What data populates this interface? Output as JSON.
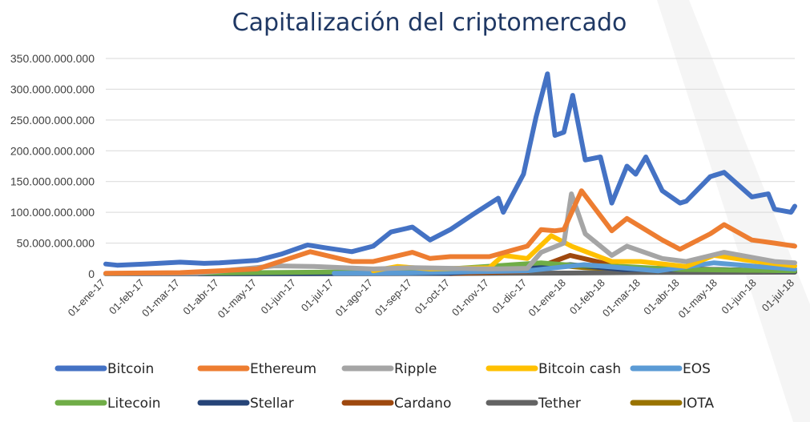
{
  "chart_data": {
    "type": "line",
    "title": "Capitalización del criptomercado",
    "xlabel": "",
    "ylabel": "",
    "ylim": [
      0,
      350000000000
    ],
    "ytick_values": [
      0,
      50000000000,
      100000000000,
      150000000000,
      200000000000,
      250000000000,
      300000000000,
      350000000000
    ],
    "ytick_labels": [
      "0",
      "50.000.000.000",
      "100.000.000.000",
      "150.000.000.000",
      "200.000.000.000",
      "250.000.000.000",
      "300.000.000.000",
      "350.000.000.000"
    ],
    "xlim": [
      "2017-01-01",
      "2018-07-01"
    ],
    "xtick_dates": [
      "2017-01-01",
      "2017-02-01",
      "2017-03-01",
      "2017-04-01",
      "2017-05-01",
      "2017-06-01",
      "2017-07-01",
      "2017-08-01",
      "2017-09-01",
      "2017-10-01",
      "2017-11-01",
      "2017-12-01",
      "2018-01-01",
      "2018-02-01",
      "2018-03-01",
      "2018-04-01",
      "2018-05-01",
      "2018-06-01",
      "2018-07-01"
    ],
    "xtick_labels": [
      "01-ene-17",
      "01-feb-17",
      "01-mar-17",
      "01-abr-17",
      "01-may-17",
      "01-jun-17",
      "01-jul-17",
      "01-ago-17",
      "01-sep-17",
      "01-oct-17",
      "01-nov-17",
      "01-dic-17",
      "01-ene-18",
      "01-feb-18",
      "01-mar-18",
      "01-abr-18",
      "01-may-18",
      "01-jun-18",
      "01-jul-18"
    ],
    "grid": true,
    "legend_position": "bottom",
    "series": [
      {
        "name": "Bitcoin",
        "color": "#4472c4",
        "points": [
          [
            "2017-01-01",
            16000000000.0
          ],
          [
            "2017-01-10",
            14000000000.0
          ],
          [
            "2017-02-01",
            16000000000.0
          ],
          [
            "2017-03-01",
            19000000000.0
          ],
          [
            "2017-03-20",
            17000000000.0
          ],
          [
            "2017-04-01",
            18000000000.0
          ],
          [
            "2017-05-01",
            22000000000.0
          ],
          [
            "2017-05-20",
            32000000000.0
          ],
          [
            "2017-06-10",
            47000000000.0
          ],
          [
            "2017-06-25",
            42000000000.0
          ],
          [
            "2017-07-15",
            36000000000.0
          ],
          [
            "2017-08-01",
            45000000000.0
          ],
          [
            "2017-08-15",
            68000000000.0
          ],
          [
            "2017-09-01",
            76000000000.0
          ],
          [
            "2017-09-15",
            55000000000.0
          ],
          [
            "2017-10-01",
            72000000000.0
          ],
          [
            "2017-10-20",
            98000000000.0
          ],
          [
            "2017-11-08",
            123000000000.0
          ],
          [
            "2017-11-12",
            100000000000.0
          ],
          [
            "2017-11-28",
            162000000000.0
          ],
          [
            "2017-12-08",
            255000000000.0
          ],
          [
            "2017-12-17",
            325000000000.0
          ],
          [
            "2017-12-23",
            225000000000.0
          ],
          [
            "2017-12-30",
            230000000000.0
          ],
          [
            "2018-01-06",
            290000000000.0
          ],
          [
            "2018-01-16",
            185000000000.0
          ],
          [
            "2018-01-28",
            190000000000.0
          ],
          [
            "2018-02-06",
            115000000000.0
          ],
          [
            "2018-02-18",
            175000000000.0
          ],
          [
            "2018-02-25",
            162000000000.0
          ],
          [
            "2018-03-05",
            190000000000.0
          ],
          [
            "2018-03-18",
            135000000000.0
          ],
          [
            "2018-04-01",
            115000000000.0
          ],
          [
            "2018-04-06",
            118000000000.0
          ],
          [
            "2018-04-25",
            158000000000.0
          ],
          [
            "2018-05-06",
            165000000000.0
          ],
          [
            "2018-05-28",
            125000000000.0
          ],
          [
            "2018-06-10",
            130000000000.0
          ],
          [
            "2018-06-15",
            105000000000.0
          ],
          [
            "2018-06-28",
            100000000000.0
          ],
          [
            "2018-07-01",
            110000000000.0
          ]
        ]
      },
      {
        "name": "Ethereum",
        "color": "#ed7d31",
        "points": [
          [
            "2017-01-01",
            1000000000.0
          ],
          [
            "2017-03-01",
            2000000000.0
          ],
          [
            "2017-05-01",
            8000000000.0
          ],
          [
            "2017-06-12",
            36000000000.0
          ],
          [
            "2017-07-15",
            20000000000.0
          ],
          [
            "2017-08-01",
            20000000000.0
          ],
          [
            "2017-09-01",
            35000000000.0
          ],
          [
            "2017-09-15",
            25000000000.0
          ],
          [
            "2017-10-01",
            28000000000.0
          ],
          [
            "2017-11-01",
            28000000000.0
          ],
          [
            "2017-12-01",
            45000000000.0
          ],
          [
            "2017-12-12",
            72000000000.0
          ],
          [
            "2017-12-23",
            70000000000.0
          ],
          [
            "2017-12-30",
            72000000000.0
          ],
          [
            "2018-01-13",
            135000000000.0
          ],
          [
            "2018-02-06",
            70000000000.0
          ],
          [
            "2018-02-18",
            90000000000.0
          ],
          [
            "2018-03-18",
            55000000000.0
          ],
          [
            "2018-04-01",
            40000000000.0
          ],
          [
            "2018-04-25",
            65000000000.0
          ],
          [
            "2018-05-06",
            80000000000.0
          ],
          [
            "2018-05-28",
            55000000000.0
          ],
          [
            "2018-06-15",
            50000000000.0
          ],
          [
            "2018-07-01",
            45000000000.0
          ]
        ]
      },
      {
        "name": "Ripple",
        "color": "#a5a5a5",
        "points": [
          [
            "2017-01-01",
            300000000.0
          ],
          [
            "2017-03-15",
            1000000000.0
          ],
          [
            "2017-05-15",
            13000000000.0
          ],
          [
            "2017-06-15",
            12000000000.0
          ],
          [
            "2017-08-01",
            8000000000.0
          ],
          [
            "2017-09-01",
            10000000000.0
          ],
          [
            "2017-11-01",
            8000000000.0
          ],
          [
            "2017-12-01",
            9000000000.0
          ],
          [
            "2017-12-12",
            35000000000.0
          ],
          [
            "2017-12-30",
            50000000000.0
          ],
          [
            "2018-01-05",
            130000000000.0
          ],
          [
            "2018-01-16",
            65000000000.0
          ],
          [
            "2018-02-06",
            30000000000.0
          ],
          [
            "2018-02-18",
            45000000000.0
          ],
          [
            "2018-03-18",
            25000000000.0
          ],
          [
            "2018-04-06",
            20000000000.0
          ],
          [
            "2018-05-06",
            35000000000.0
          ],
          [
            "2018-06-15",
            20000000000.0
          ],
          [
            "2018-07-01",
            18000000000.0
          ]
        ]
      },
      {
        "name": "Bitcoin cash",
        "color": "#ffc000",
        "points": [
          [
            "2017-08-01",
            5000000000.0
          ],
          [
            "2017-08-20",
            12000000000.0
          ],
          [
            "2017-09-15",
            8000000000.0
          ],
          [
            "2017-11-01",
            10000000000.0
          ],
          [
            "2017-11-12",
            30000000000.0
          ],
          [
            "2017-12-01",
            25000000000.0
          ],
          [
            "2017-12-20",
            62000000000.0
          ],
          [
            "2018-01-05",
            45000000000.0
          ],
          [
            "2018-02-06",
            20000000000.0
          ],
          [
            "2018-03-01",
            20000000000.0
          ],
          [
            "2018-04-06",
            12000000000.0
          ],
          [
            "2018-04-28",
            30000000000.0
          ],
          [
            "2018-06-01",
            20000000000.0
          ],
          [
            "2018-07-01",
            13000000000.0
          ]
        ]
      },
      {
        "name": "EOS",
        "color": "#5b9bd5",
        "points": [
          [
            "2017-07-01",
            1000000000.0
          ],
          [
            "2017-09-01",
            1500000000.0
          ],
          [
            "2017-12-01",
            5000000000.0
          ],
          [
            "2018-01-15",
            15000000000.0
          ],
          [
            "2018-03-15",
            5000000000.0
          ],
          [
            "2018-04-28",
            18000000000.0
          ],
          [
            "2018-06-01",
            12000000000.0
          ],
          [
            "2018-07-01",
            8000000000.0
          ]
        ]
      },
      {
        "name": "Litecoin",
        "color": "#70ad47",
        "points": [
          [
            "2017-01-01",
            300000000.0
          ],
          [
            "2017-05-01",
            2000000000.0
          ],
          [
            "2017-09-01",
            4000000000.0
          ],
          [
            "2017-12-12",
            18000000000.0
          ],
          [
            "2018-01-05",
            14000000000.0
          ],
          [
            "2018-02-15",
            12000000000.0
          ],
          [
            "2018-04-01",
            7000000000.0
          ],
          [
            "2018-07-01",
            5000000000.0
          ]
        ]
      },
      {
        "name": "Stellar",
        "color": "#264478",
        "points": [
          [
            "2017-01-01",
            100000000.0
          ],
          [
            "2017-10-01",
            1000000000.0
          ],
          [
            "2018-01-04",
            15000000000.0
          ],
          [
            "2018-02-15",
            7000000000.0
          ],
          [
            "2018-05-01",
            7000000000.0
          ],
          [
            "2018-07-01",
            4000000000.0
          ]
        ]
      },
      {
        "name": "Cardano",
        "color": "#9e480e",
        "points": [
          [
            "2017-10-01",
            500000000.0
          ],
          [
            "2017-12-01",
            4000000000.0
          ],
          [
            "2018-01-04",
            30000000000.0
          ],
          [
            "2018-02-15",
            10000000000.0
          ],
          [
            "2018-05-01",
            7000000000.0
          ],
          [
            "2018-07-01",
            4000000000.0
          ]
        ]
      },
      {
        "name": "Tether",
        "color": "#636363",
        "points": [
          [
            "2017-01-01",
            100000000.0
          ],
          [
            "2017-06-01",
            100000000.0
          ],
          [
            "2017-10-01",
            500000000.0
          ],
          [
            "2018-01-01",
            1300000000.0
          ],
          [
            "2018-03-01",
            2200000000.0
          ],
          [
            "2018-07-01",
            2700000000.0
          ]
        ]
      },
      {
        "name": "IOTA",
        "color": "#997300",
        "points": [
          [
            "2017-06-14",
            1500000000.0
          ],
          [
            "2017-08-01",
            1000000000.0
          ],
          [
            "2017-10-01",
            1500000000.0
          ],
          [
            "2017-12-19",
            15000000000.0
          ],
          [
            "2018-01-15",
            10000000000.0
          ],
          [
            "2018-03-15",
            5000000000.0
          ],
          [
            "2018-05-01",
            6000000000.0
          ],
          [
            "2018-07-01",
            3000000000.0
          ]
        ]
      }
    ]
  }
}
